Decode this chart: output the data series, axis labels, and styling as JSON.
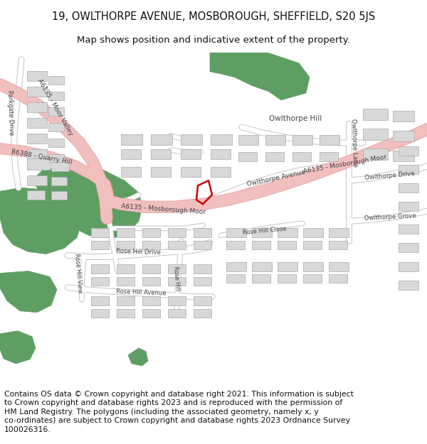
{
  "title_line1": "19, OWLTHORPE AVENUE, MOSBOROUGH, SHEFFIELD, S20 5JS",
  "title_line2": "Map shows position and indicative extent of the property.",
  "footer_text": "Contains OS data © Crown copyright and database right 2021. This information is subject\nto Crown copyright and database rights 2023 and is reproduced with the permission of\nHM Land Registry. The polygons (including the associated geometry, namely x, y\nco-ordinates) are subject to Crown copyright and database rights 2023 Ordnance Survey\n100026316.",
  "title_fontsize": 10.5,
  "subtitle_fontsize": 9.5,
  "footer_fontsize": 7.8,
  "background_color": "#ffffff",
  "map_bg": "#f8f8f8",
  "road_main_color": "#f2bfbf",
  "road_main_border": "#e8a8a8",
  "road_minor_color": "#ffffff",
  "road_minor_border": "#c8c8c8",
  "green_area_color": "#5e9e62",
  "building_color": "#d8d8d8",
  "building_border": "#aaaaaa",
  "red_outline_color": "#cc0000",
  "text_color": "#333333"
}
